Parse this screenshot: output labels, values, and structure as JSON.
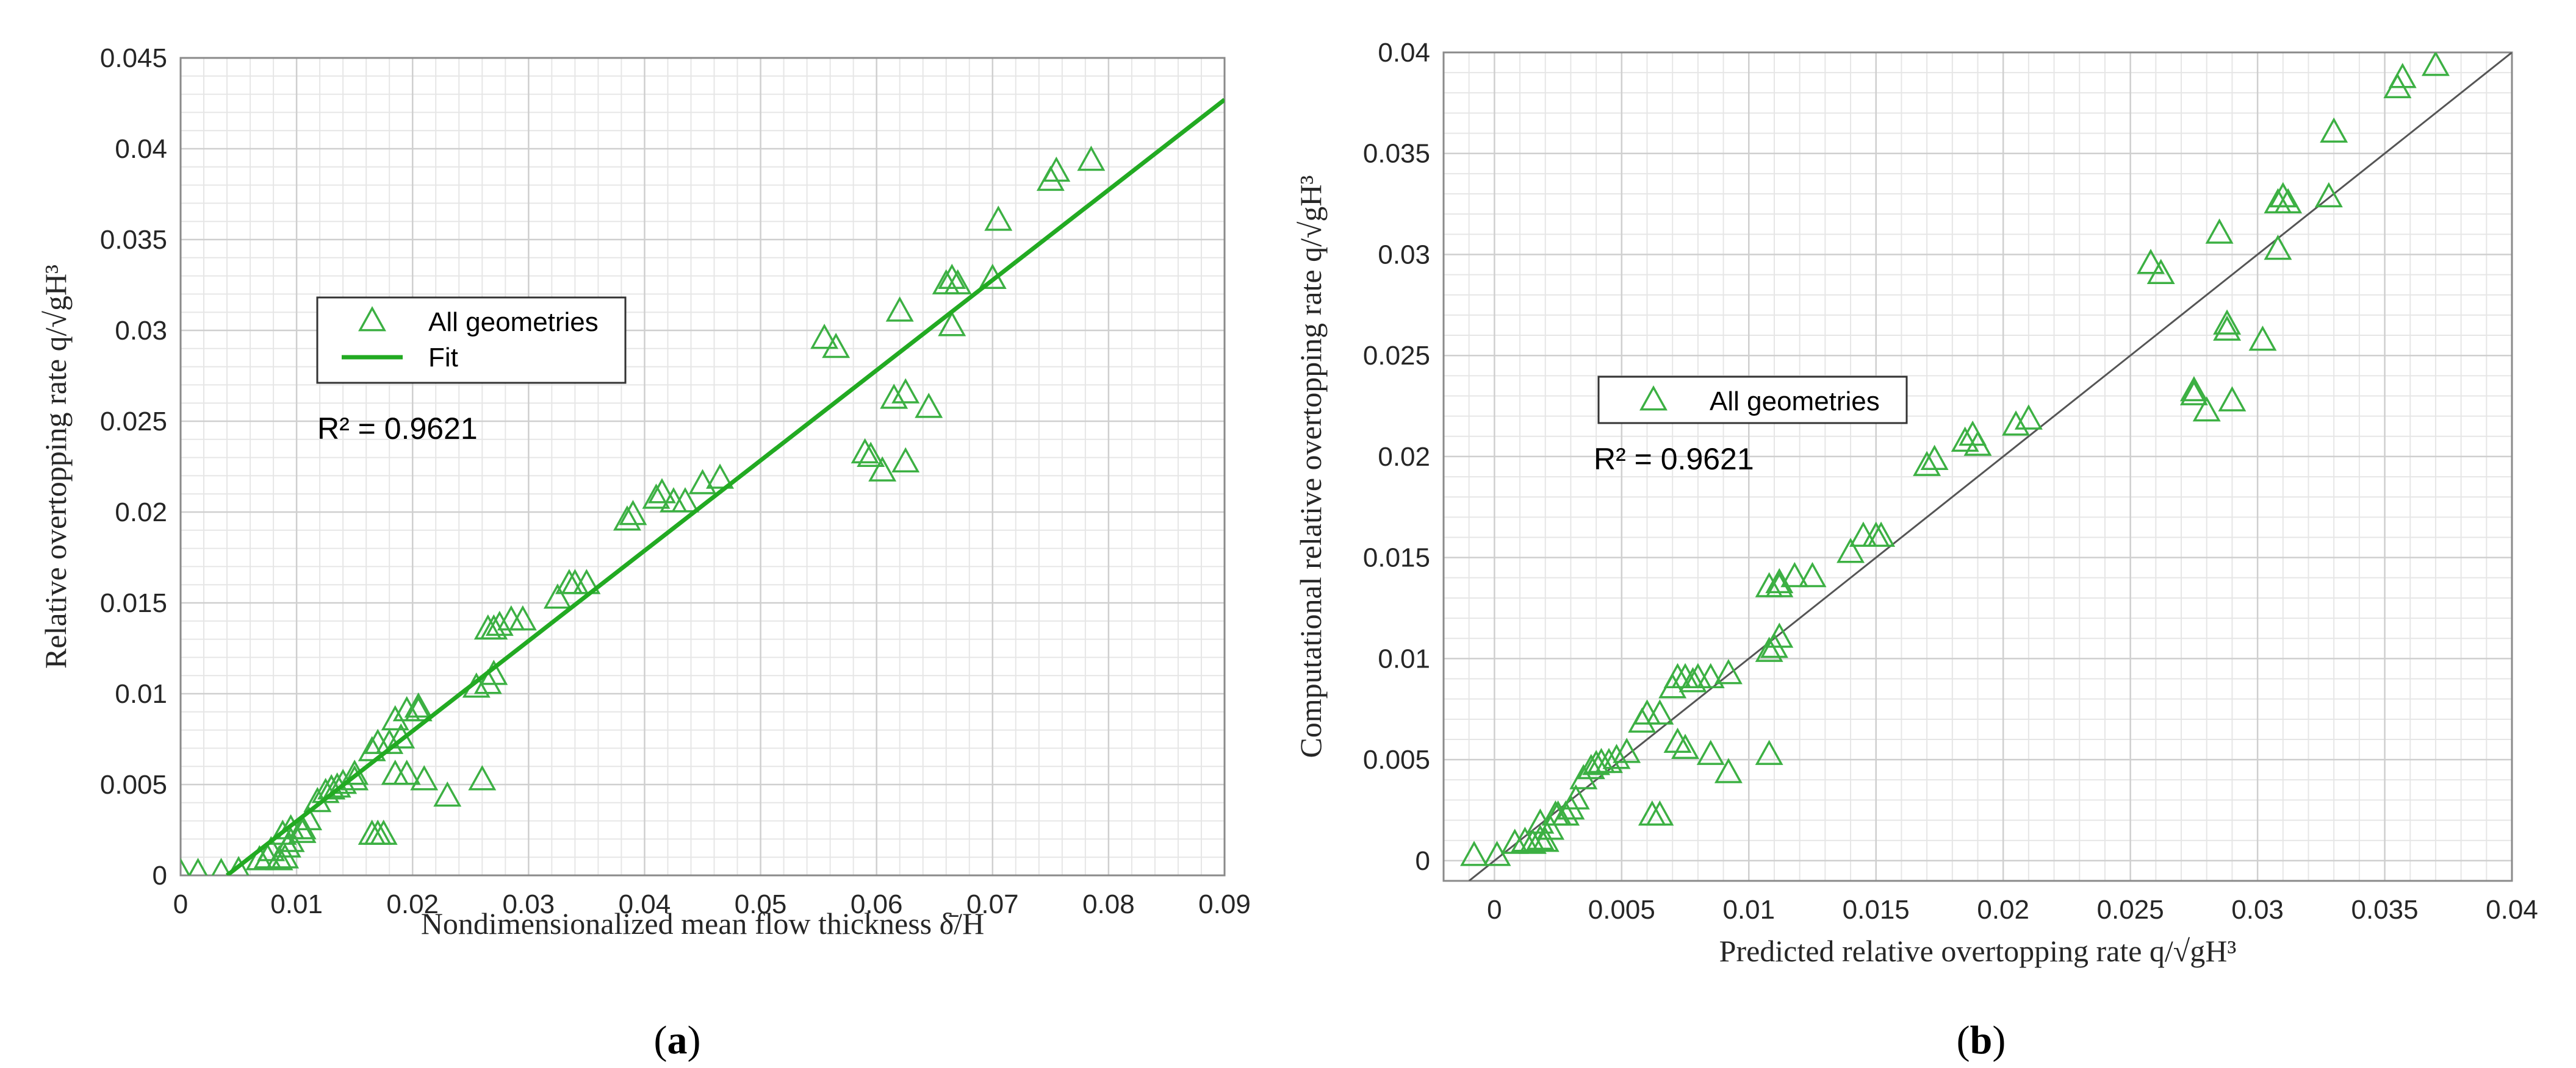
{
  "chart_data": [
    {
      "type": "scatter",
      "panel_label": "(a)",
      "xlabel": "Nondimensionalized mean flow thickness δ̄/H",
      "ylabel": "Relative overtopping rate q/√gH³",
      "xlim": [
        0,
        0.09
      ],
      "ylim": [
        0,
        0.045
      ],
      "x_ticks": [
        "0",
        "0.01",
        "0.02",
        "0.03",
        "0.04",
        "0.05",
        "0.06",
        "0.07",
        "0.08",
        "0.09"
      ],
      "y_ticks": [
        "0",
        "0.005",
        "0.01",
        "0.015",
        "0.02",
        "0.025",
        "0.03",
        "0.035",
        "0.04",
        "0.045"
      ],
      "grid": true,
      "annotation": "R² = 0.9621",
      "legend": [
        "All geometries",
        "Fit"
      ],
      "legend_placement": "upper-left",
      "marker_color": "#3cb043",
      "fit_color": "#22aa22",
      "series": [
        {
          "name": "All geometries",
          "marker": "triangle",
          "x": [
            0.0,
            0.0015,
            0.0035,
            0.005,
            0.0068,
            0.0075,
            0.0085,
            0.009,
            0.0092,
            0.0078,
            0.0088,
            0.0095,
            0.0105,
            0.011,
            0.0118,
            0.0125,
            0.013,
            0.0135,
            0.014,
            0.015,
            0.0165,
            0.017,
            0.018,
            0.0185,
            0.0195,
            0.0205,
            0.0165,
            0.017,
            0.0175,
            0.0185,
            0.0195,
            0.021,
            0.023,
            0.026,
            0.0255,
            0.0265,
            0.027,
            0.027,
            0.0265,
            0.0275,
            0.0285,
            0.0295,
            0.0325,
            0.0335,
            0.034,
            0.035,
            0.0385,
            0.039,
            0.041,
            0.0415,
            0.0425,
            0.0435,
            0.045,
            0.0465,
            0.0555,
            0.0565,
            0.059,
            0.0595,
            0.0605,
            0.0615,
            0.062,
            0.0625,
            0.0645,
            0.0625,
            0.066,
            0.0665,
            0.067,
            0.0665,
            0.07,
            0.0705,
            0.075,
            0.0755,
            0.0785,
            0.013,
            0.015,
            0.019,
            0.0205,
            0.0095,
            0.0105
          ],
          "y": [
            0.0001,
            0.0001,
            0.0001,
            0.0002,
            0.0008,
            0.0009,
            0.0008,
            0.0009,
            0.0015,
            0.0013,
            0.0022,
            0.0025,
            0.0025,
            0.003,
            0.004,
            0.0045,
            0.0047,
            0.0048,
            0.005,
            0.0055,
            0.0068,
            0.0072,
            0.0072,
            0.0085,
            0.009,
            0.009,
            0.0022,
            0.0022,
            0.0022,
            0.0055,
            0.0055,
            0.0052,
            0.0043,
            0.0052,
            0.0103,
            0.0105,
            0.011,
            0.0135,
            0.0135,
            0.0137,
            0.014,
            0.014,
            0.0152,
            0.016,
            0.016,
            0.016,
            0.0195,
            0.0198,
            0.0207,
            0.021,
            0.0205,
            0.0205,
            0.0215,
            0.0218,
            0.0295,
            0.029,
            0.0232,
            0.023,
            0.0222,
            0.0262,
            0.031,
            0.0265,
            0.0257,
            0.0227,
            0.0325,
            0.0328,
            0.0325,
            0.0302,
            0.0328,
            0.036,
            0.0382,
            0.0387,
            0.0393,
            0.0047,
            0.0052,
            0.0075,
            0.0092,
            0.0018,
            0.0023
          ]
        },
        {
          "name": "Fit",
          "type": "line",
          "x": [
            0.004,
            0.09
          ],
          "y": [
            0.0,
            0.0427
          ]
        }
      ]
    },
    {
      "type": "scatter",
      "panel_label": "(b)",
      "xlabel": "Predicted relative overtopping rate q/√gH³",
      "ylabel": "Computational relative overtopping rate q/√gH³",
      "xlim": [
        -0.002,
        0.04
      ],
      "ylim": [
        -0.001,
        0.04
      ],
      "x_ticks": [
        "0",
        "0.005",
        "0.01",
        "0.015",
        "0.02",
        "0.025",
        "0.03",
        "0.035",
        "0.04"
      ],
      "y_ticks": [
        "0",
        "0.005",
        "0.01",
        "0.015",
        "0.02",
        "0.025",
        "0.03",
        "0.035",
        "0.04"
      ],
      "grid": true,
      "annotation": "R² = 0.9621",
      "legend": [
        "All geometries"
      ],
      "legend_placement": "upper-left",
      "marker_color": "#3cb043",
      "reference_line": {
        "x": [
          -0.001,
          0.04
        ],
        "y": [
          -0.001,
          0.04
        ],
        "color": "#555555"
      },
      "series": [
        {
          "name": "All geometries",
          "marker": "triangle",
          "x": [
            -0.0008,
            0.0001,
            0.0008,
            0.0012,
            0.0015,
            0.0018,
            0.002,
            0.0022,
            0.0025,
            0.0028,
            0.003,
            0.0032,
            0.0035,
            0.0038,
            0.004,
            0.0042,
            0.0045,
            0.0048,
            0.0052,
            0.0058,
            0.006,
            0.0065,
            0.007,
            0.0072,
            0.0075,
            0.0078,
            0.008,
            0.0085,
            0.0092,
            0.0108,
            0.011,
            0.0112,
            0.0112,
            0.0108,
            0.0112,
            0.0118,
            0.0125,
            0.014,
            0.0145,
            0.015,
            0.0152,
            0.017,
            0.0173,
            0.0185,
            0.0188,
            0.019,
            0.0205,
            0.021,
            0.0258,
            0.0262,
            0.0275,
            0.0275,
            0.028,
            0.0288,
            0.0285,
            0.0288,
            0.029,
            0.0302,
            0.0308,
            0.031,
            0.0312,
            0.0308,
            0.031,
            0.0328,
            0.033,
            0.0355,
            0.0357,
            0.037,
            0.0062,
            0.0065,
            0.0072,
            0.0075,
            0.0085,
            0.0092,
            0.0108,
            0.0018,
            0.0024
          ],
          "y": [
            0.0002,
            0.0002,
            0.0008,
            0.0009,
            0.0008,
            0.001,
            0.0009,
            0.0015,
            0.0022,
            0.0022,
            0.0025,
            0.003,
            0.004,
            0.0045,
            0.0047,
            0.0048,
            0.0048,
            0.005,
            0.0053,
            0.0068,
            0.0072,
            0.0072,
            0.0085,
            0.009,
            0.009,
            0.0088,
            0.009,
            0.009,
            0.0092,
            0.0103,
            0.0105,
            0.011,
            0.0135,
            0.0135,
            0.0137,
            0.014,
            0.014,
            0.0152,
            0.016,
            0.016,
            0.016,
            0.0195,
            0.0198,
            0.0207,
            0.021,
            0.0205,
            0.0215,
            0.0218,
            0.0295,
            0.029,
            0.0232,
            0.023,
            0.0222,
            0.0262,
            0.031,
            0.0265,
            0.0227,
            0.0257,
            0.0325,
            0.0328,
            0.0325,
            0.0302,
            0.0328,
            0.0328,
            0.036,
            0.0382,
            0.0387,
            0.0393,
            0.0022,
            0.0022,
            0.0058,
            0.0055,
            0.0052,
            0.0043,
            0.0052,
            0.0018,
            0.0022
          ]
        }
      ]
    }
  ]
}
